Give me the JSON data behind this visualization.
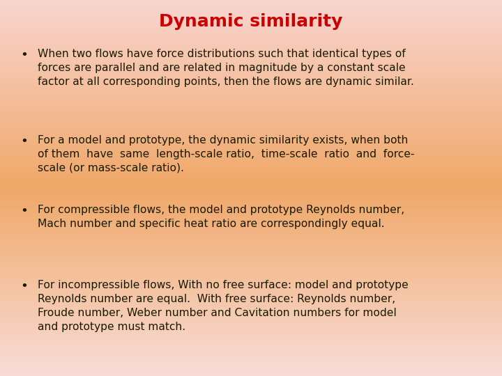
{
  "title": "Dynamic similarity",
  "title_color": "#cc0000",
  "title_fontsize": 18,
  "text_color": "#1a1a00",
  "text_fontsize": 11.2,
  "bullet_points": [
    "When two flows have force distributions such that identical types of\nforces are parallel and are related in magnitude by a constant scale\nfactor at all corresponding points, then the flows are dynamic similar.",
    "For a model and prototype, the dynamic similarity exists, when both\nof them  have  same  length-scale ratio,  time-scale  ratio  and  force-\nscale (or mass-scale ratio).",
    "For compressible flows, the model and prototype Reynolds number,\nMach number and specific heat ratio are correspondingly equal.",
    "For incompressible flows, With no free surface: model and prototype\nReynolds number are equal.  With free surface: Reynolds number,\nFroude number, Weber number and Cavitation numbers for model\nand prototype must match."
  ],
  "bg_top_left": "#f9d5d0",
  "bg_top_right": "#f9d5d0",
  "bg_mid_left": "#f0a868",
  "bg_mid_right": "#f0a868",
  "bg_bottom_left": "#f9dcd8",
  "bg_bottom_right": "#f9dcd8",
  "figsize": [
    7.2,
    5.4
  ],
  "dpi": 100
}
